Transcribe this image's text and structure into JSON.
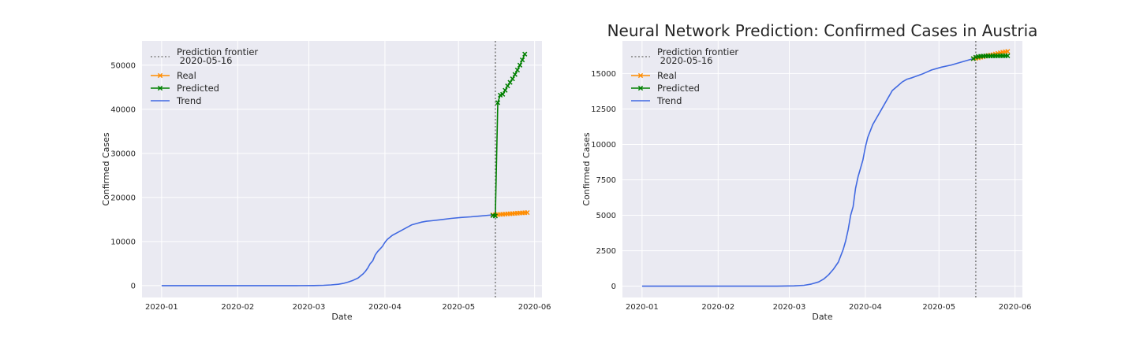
{
  "chart_data": [
    {
      "type": "line",
      "title": "",
      "xlabel": "Date",
      "ylabel": "Confirmed Cases",
      "x_ticks": [
        "2020-01-01",
        "2020-02-01",
        "2020-03-01",
        "2020-04-01",
        "2020-05-01",
        "2020-06-01"
      ],
      "x_tick_labels": [
        "2020-01",
        "2020-02",
        "2020-03",
        "2020-04",
        "2020-05",
        "2020-06"
      ],
      "xlim": [
        "2019-12-24",
        "2020-06-04"
      ],
      "ylim": [
        -2700,
        55500
      ],
      "y_ticks": [
        0,
        10000,
        20000,
        30000,
        40000,
        50000
      ],
      "grid": true,
      "legend_position": "top-left",
      "frontier": {
        "date": "2020-05-16",
        "label": "Prediction frontier\n 2020-05-16"
      },
      "series": [
        {
          "name": "Trend",
          "color": "#4169e1",
          "marker": "none",
          "x": [
            "2020-01-01",
            "2020-02-01",
            "2020-02-25",
            "2020-03-03",
            "2020-03-07",
            "2020-03-10",
            "2020-03-13",
            "2020-03-15",
            "2020-03-17",
            "2020-03-19",
            "2020-03-21",
            "2020-03-23",
            "2020-03-24",
            "2020-03-25",
            "2020-03-26",
            "2020-03-27",
            "2020-03-28",
            "2020-03-29",
            "2020-03-30",
            "2020-03-31",
            "2020-04-01",
            "2020-04-02",
            "2020-04-04",
            "2020-04-06",
            "2020-04-08",
            "2020-04-10",
            "2020-04-12",
            "2020-04-14",
            "2020-04-16",
            "2020-04-18",
            "2020-04-20",
            "2020-04-24",
            "2020-04-28",
            "2020-05-02",
            "2020-05-06",
            "2020-05-10",
            "2020-05-15"
          ],
          "y": [
            0,
            0,
            0,
            20,
            60,
            150,
            300,
            500,
            800,
            1200,
            1700,
            2600,
            3200,
            4000,
            5000,
            5600,
            6900,
            7700,
            8300,
            8900,
            9800,
            10500,
            11400,
            12000,
            12600,
            13200,
            13800,
            14100,
            14400,
            14600,
            14700,
            14950,
            15250,
            15450,
            15600,
            15800,
            16050
          ]
        },
        {
          "name": "Real",
          "color": "#ff8c00",
          "marker": "x",
          "x": [
            "2020-05-15",
            "2020-05-16",
            "2020-05-17",
            "2020-05-18",
            "2020-05-19",
            "2020-05-20",
            "2020-05-21",
            "2020-05-22",
            "2020-05-23",
            "2020-05-24",
            "2020-05-25",
            "2020-05-26",
            "2020-05-27",
            "2020-05-28",
            "2020-05-29"
          ],
          "y": [
            16050,
            16070,
            16100,
            16150,
            16180,
            16230,
            16270,
            16300,
            16330,
            16380,
            16420,
            16460,
            16500,
            16530,
            16560
          ]
        },
        {
          "name": "Predicted",
          "color": "#008000",
          "marker": "x",
          "x": [
            "2020-05-15",
            "2020-05-16",
            "2020-05-17",
            "2020-05-18",
            "2020-05-19",
            "2020-05-20",
            "2020-05-21",
            "2020-05-22",
            "2020-05-23",
            "2020-05-24",
            "2020-05-25",
            "2020-05-26",
            "2020-05-27",
            "2020-05-28",
            "2020-05-29"
          ],
          "y": [
            15900,
            15800,
            41500,
            43200,
            43400,
            44300,
            45300,
            46100,
            46900,
            47900,
            48900,
            50000,
            51200,
            52500,
            null
          ]
        }
      ]
    },
    {
      "type": "line",
      "title": "Neural Network Prediction: Confirmed Cases in Austria",
      "xlabel": "Date",
      "ylabel": "Confirmed Cases",
      "x_ticks": [
        "2020-01-01",
        "2020-02-01",
        "2020-03-01",
        "2020-04-01",
        "2020-05-01",
        "2020-06-01"
      ],
      "x_tick_labels": [
        "2020-01",
        "2020-02",
        "2020-03",
        "2020-04",
        "2020-05",
        "2020-06"
      ],
      "xlim": [
        "2019-12-24",
        "2020-06-04"
      ],
      "ylim": [
        -800,
        17300
      ],
      "y_ticks": [
        0,
        2500,
        5000,
        7500,
        10000,
        12500,
        15000
      ],
      "grid": true,
      "legend_position": "top-left",
      "frontier": {
        "date": "2020-05-16",
        "label": "Prediction frontier\n 2020-05-16"
      },
      "series": [
        {
          "name": "Trend",
          "color": "#4169e1",
          "marker": "none",
          "x": [
            "2020-01-01",
            "2020-02-01",
            "2020-02-25",
            "2020-03-03",
            "2020-03-07",
            "2020-03-10",
            "2020-03-13",
            "2020-03-15",
            "2020-03-17",
            "2020-03-19",
            "2020-03-21",
            "2020-03-23",
            "2020-03-24",
            "2020-03-25",
            "2020-03-26",
            "2020-03-27",
            "2020-03-28",
            "2020-03-29",
            "2020-03-30",
            "2020-03-31",
            "2020-04-01",
            "2020-04-02",
            "2020-04-04",
            "2020-04-06",
            "2020-04-08",
            "2020-04-10",
            "2020-04-12",
            "2020-04-14",
            "2020-04-16",
            "2020-04-18",
            "2020-04-20",
            "2020-04-24",
            "2020-04-28",
            "2020-05-02",
            "2020-05-06",
            "2020-05-10",
            "2020-05-15"
          ],
          "y": [
            0,
            0,
            0,
            20,
            60,
            150,
            300,
            500,
            800,
            1200,
            1700,
            2600,
            3200,
            4000,
            5000,
            5600,
            6900,
            7700,
            8300,
            8900,
            9800,
            10500,
            11400,
            12000,
            12600,
            13200,
            13800,
            14100,
            14400,
            14600,
            14700,
            14950,
            15250,
            15450,
            15600,
            15800,
            16050
          ]
        },
        {
          "name": "Real",
          "color": "#ff8c00",
          "marker": "x",
          "x": [
            "2020-05-15",
            "2020-05-16",
            "2020-05-17",
            "2020-05-18",
            "2020-05-19",
            "2020-05-20",
            "2020-05-21",
            "2020-05-22",
            "2020-05-23",
            "2020-05-24",
            "2020-05-25",
            "2020-05-26",
            "2020-05-27",
            "2020-05-28",
            "2020-05-29"
          ],
          "y": [
            16050,
            16070,
            16100,
            16150,
            16180,
            16230,
            16270,
            16300,
            16330,
            16380,
            16420,
            16460,
            16500,
            16530,
            16560
          ]
        },
        {
          "name": "Predicted",
          "color": "#008000",
          "marker": "x",
          "x": [
            "2020-05-15",
            "2020-05-16",
            "2020-05-17",
            "2020-05-18",
            "2020-05-19",
            "2020-05-20",
            "2020-05-21",
            "2020-05-22",
            "2020-05-23",
            "2020-05-24",
            "2020-05-25",
            "2020-05-26",
            "2020-05-27",
            "2020-05-28",
            "2020-05-29"
          ],
          "y": [
            16050,
            16150,
            16200,
            16220,
            16230,
            16240,
            16240,
            16240,
            16245,
            16245,
            16245,
            16250,
            16250,
            16250,
            16250
          ]
        }
      ]
    }
  ]
}
